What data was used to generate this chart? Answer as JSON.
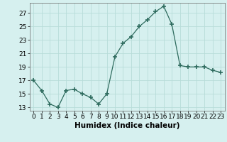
{
  "x": [
    0,
    1,
    2,
    3,
    4,
    5,
    6,
    7,
    8,
    9,
    10,
    11,
    12,
    13,
    14,
    15,
    16,
    17,
    18,
    19,
    20,
    21,
    22,
    23
  ],
  "y": [
    17,
    15.5,
    13.5,
    13,
    15.5,
    15.7,
    15,
    14.5,
    13.5,
    15,
    20.5,
    22.5,
    23.5,
    25,
    26,
    27.2,
    28,
    25.3,
    19.2,
    19,
    19,
    19,
    18.5,
    18.2
  ],
  "line_color": "#2e6b5e",
  "marker": "+",
  "marker_size": 4,
  "marker_lw": 1.2,
  "bg_color": "#d6f0ef",
  "grid_color": "#b8dcd9",
  "xlabel": "Humidex (Indice chaleur)",
  "xlim": [
    -0.5,
    23.5
  ],
  "ylim": [
    12.5,
    28.5
  ],
  "yticks": [
    13,
    15,
    17,
    19,
    21,
    23,
    25,
    27
  ],
  "xtick_labels": [
    "0",
    "1",
    "2",
    "3",
    "4",
    "5",
    "6",
    "7",
    "8",
    "9",
    "10",
    "11",
    "12",
    "13",
    "14",
    "15",
    "16",
    "17",
    "18",
    "19",
    "20",
    "21",
    "22",
    "23"
  ],
  "tick_fontsize": 6.5,
  "label_fontsize": 7.5
}
